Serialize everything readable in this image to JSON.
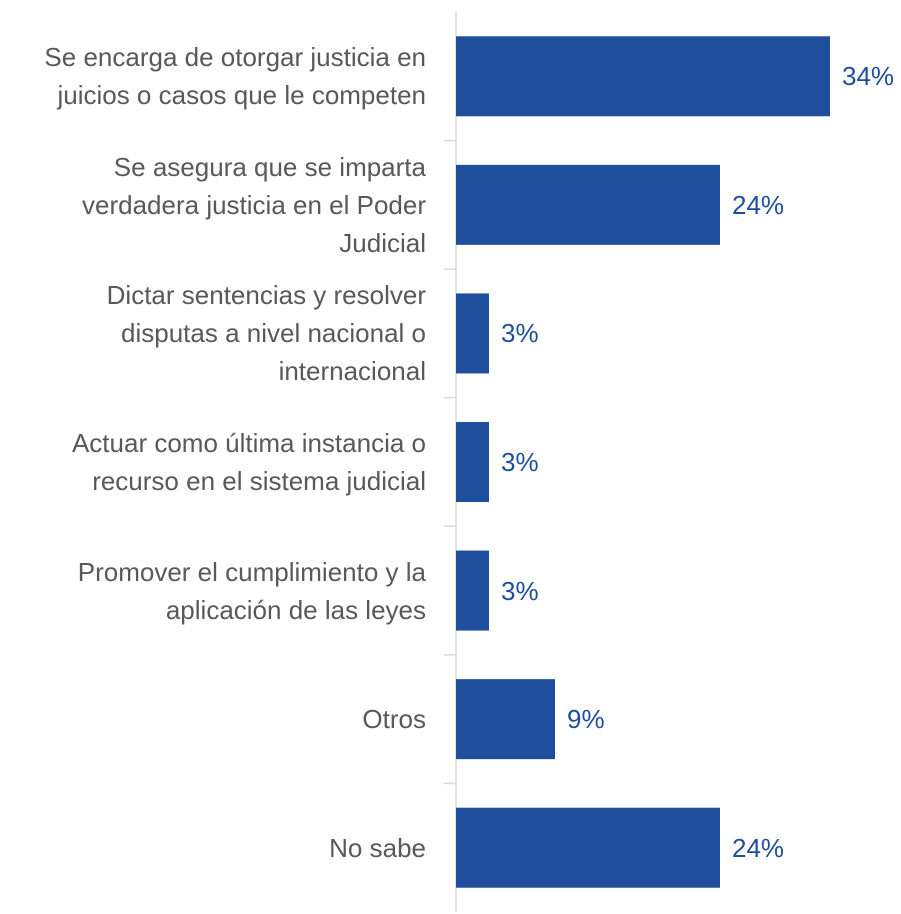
{
  "chart_data": {
    "type": "bar",
    "orientation": "horizontal",
    "categories": [
      "Se encarga de otorgar justicia en\njuicios o casos que le competen",
      "Se asegura que se imparta\nverdadera justicia en el Poder\nJudicial",
      "Dictar sentencias y resolver\ndisputas a nivel nacional o\ninternacional",
      "Actuar como última instancia o\nrecurso en el sistema judicial",
      "Promover el cumplimiento y la\naplicación de las leyes",
      "Otros",
      "No sabe"
    ],
    "values": [
      34,
      24,
      3,
      3,
      3,
      9,
      24
    ],
    "value_labels": [
      "34%",
      "24%",
      "3%",
      "3%",
      "3%",
      "9%",
      "24%"
    ],
    "color": "#1f4e9c",
    "xlim": [
      0,
      40
    ]
  }
}
